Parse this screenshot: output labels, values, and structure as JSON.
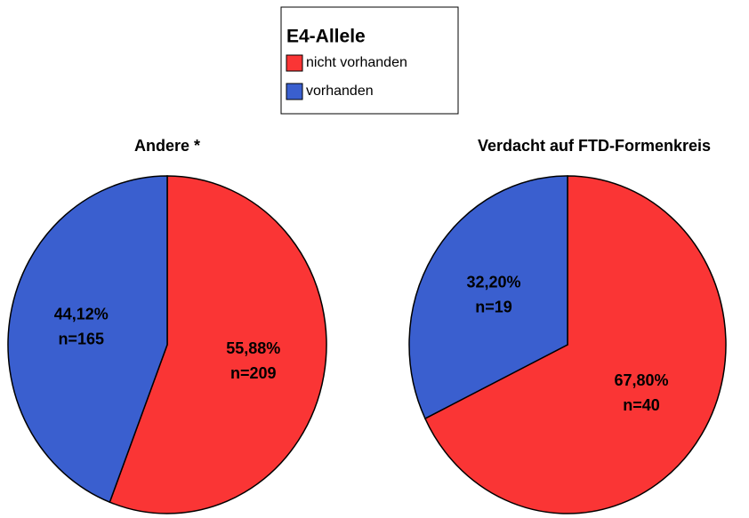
{
  "legend": {
    "title": "E4-Allele"
  },
  "chart_data": [
    {
      "type": "pie",
      "title": "Andere *",
      "categories": [
        "nicht vorhanden",
        "vorhanden"
      ],
      "colors": [
        "#fa3535",
        "#3a5fcf"
      ],
      "values": [
        55.88,
        44.12
      ],
      "value_labels": [
        "55,88%",
        "44,12%"
      ],
      "counts": [
        209,
        165
      ],
      "count_labels": [
        "n=209",
        "n=165"
      ]
    },
    {
      "type": "pie",
      "title": "Verdacht auf FTD-Formenkreis",
      "categories": [
        "nicht vorhanden",
        "vorhanden"
      ],
      "colors": [
        "#fa3535",
        "#3a5fcf"
      ],
      "values": [
        67.8,
        32.2
      ],
      "value_labels": [
        "67,80%",
        "32,20%"
      ],
      "counts": [
        40,
        19
      ],
      "count_labels": [
        "n=40",
        "n=19"
      ]
    }
  ]
}
